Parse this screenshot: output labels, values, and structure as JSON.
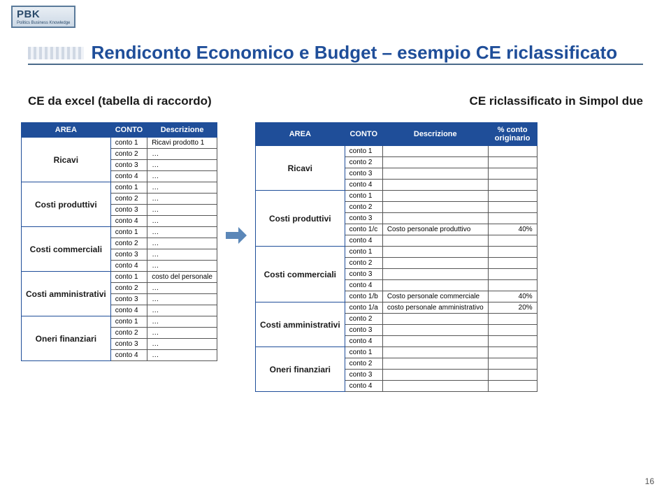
{
  "logo": {
    "main": "PBK",
    "tag": "Politics Business Knowledge"
  },
  "title": "Rendiconto Economico e Budget – esempio CE riclassificato",
  "subtitle_left": "CE da excel (tabella di raccordo)",
  "subtitle_right": "CE riclassificato in Simpol due",
  "page_number": "16",
  "colors": {
    "header_bg": "#1f4e99",
    "header_fg": "#ffffff",
    "border": "#555555",
    "title_fg": "#1f4e99",
    "arrow_fg": "#5b87b8"
  },
  "left_table": {
    "headers": [
      "AREA",
      "CONTO",
      "Descrizione"
    ],
    "groups": [
      {
        "area": "Ricavi",
        "rows": [
          {
            "conto": "conto 1",
            "desc": "Ricavi prodotto 1"
          },
          {
            "conto": "conto 2",
            "desc": "…"
          },
          {
            "conto": "conto 3",
            "desc": "…"
          },
          {
            "conto": "conto 4",
            "desc": "…"
          }
        ]
      },
      {
        "area": "Costi produttivi",
        "rows": [
          {
            "conto": "conto 1",
            "desc": "…"
          },
          {
            "conto": "conto 2",
            "desc": "…"
          },
          {
            "conto": "conto 3",
            "desc": "…"
          },
          {
            "conto": "conto 4",
            "desc": "…"
          }
        ]
      },
      {
        "area": "Costi commerciali",
        "rows": [
          {
            "conto": "conto 1",
            "desc": "…"
          },
          {
            "conto": "conto 2",
            "desc": "…"
          },
          {
            "conto": "conto 3",
            "desc": "…"
          },
          {
            "conto": "conto 4",
            "desc": "…"
          }
        ]
      },
      {
        "area": "Costi amministrativi",
        "rows": [
          {
            "conto": "conto 1",
            "desc": "costo del personale"
          },
          {
            "conto": "conto 2",
            "desc": "…"
          },
          {
            "conto": "conto 3",
            "desc": "…"
          },
          {
            "conto": "conto 4",
            "desc": "…"
          }
        ]
      },
      {
        "area": "Oneri finanziari",
        "rows": [
          {
            "conto": "conto 1",
            "desc": "…"
          },
          {
            "conto": "conto 2",
            "desc": "…"
          },
          {
            "conto": "conto 3",
            "desc": "…"
          },
          {
            "conto": "conto 4",
            "desc": "…"
          }
        ]
      }
    ]
  },
  "right_table": {
    "headers": [
      "AREA",
      "CONTO",
      "Descrizione",
      "% conto originario"
    ],
    "groups": [
      {
        "area": "Ricavi",
        "rows": [
          {
            "conto": "conto 1",
            "desc": "",
            "pct": ""
          },
          {
            "conto": "conto 2",
            "desc": "",
            "pct": ""
          },
          {
            "conto": "conto 3",
            "desc": "",
            "pct": ""
          },
          {
            "conto": "conto 4",
            "desc": "",
            "pct": ""
          }
        ]
      },
      {
        "area": "Costi produttivi",
        "rows": [
          {
            "conto": "conto 1",
            "desc": "",
            "pct": ""
          },
          {
            "conto": "conto 2",
            "desc": "",
            "pct": ""
          },
          {
            "conto": "conto 3",
            "desc": "",
            "pct": ""
          },
          {
            "conto": "conto 1/c",
            "desc": "Costo personale produttivo",
            "pct": "40%"
          },
          {
            "conto": "conto 4",
            "desc": "",
            "pct": ""
          }
        ]
      },
      {
        "area": "Costi commerciali",
        "rows": [
          {
            "conto": "conto 1",
            "desc": "",
            "pct": ""
          },
          {
            "conto": "conto 2",
            "desc": "",
            "pct": ""
          },
          {
            "conto": "conto 3",
            "desc": "",
            "pct": ""
          },
          {
            "conto": "conto 4",
            "desc": "",
            "pct": ""
          },
          {
            "conto": "conto 1/b",
            "desc": "Costo personale commerciale",
            "pct": "40%"
          }
        ]
      },
      {
        "area": "Costi amministrativi",
        "rows": [
          {
            "conto": "conto 1/a",
            "desc": "costo personale amministrativo",
            "pct": "20%"
          },
          {
            "conto": "conto 2",
            "desc": "",
            "pct": ""
          },
          {
            "conto": "conto 3",
            "desc": "",
            "pct": ""
          },
          {
            "conto": "conto 4",
            "desc": "",
            "pct": ""
          }
        ]
      },
      {
        "area": "Oneri finanziari",
        "rows": [
          {
            "conto": "conto 1",
            "desc": "",
            "pct": ""
          },
          {
            "conto": "conto 2",
            "desc": "",
            "pct": ""
          },
          {
            "conto": "conto 3",
            "desc": "",
            "pct": ""
          },
          {
            "conto": "conto 4",
            "desc": "",
            "pct": ""
          }
        ]
      }
    ]
  }
}
